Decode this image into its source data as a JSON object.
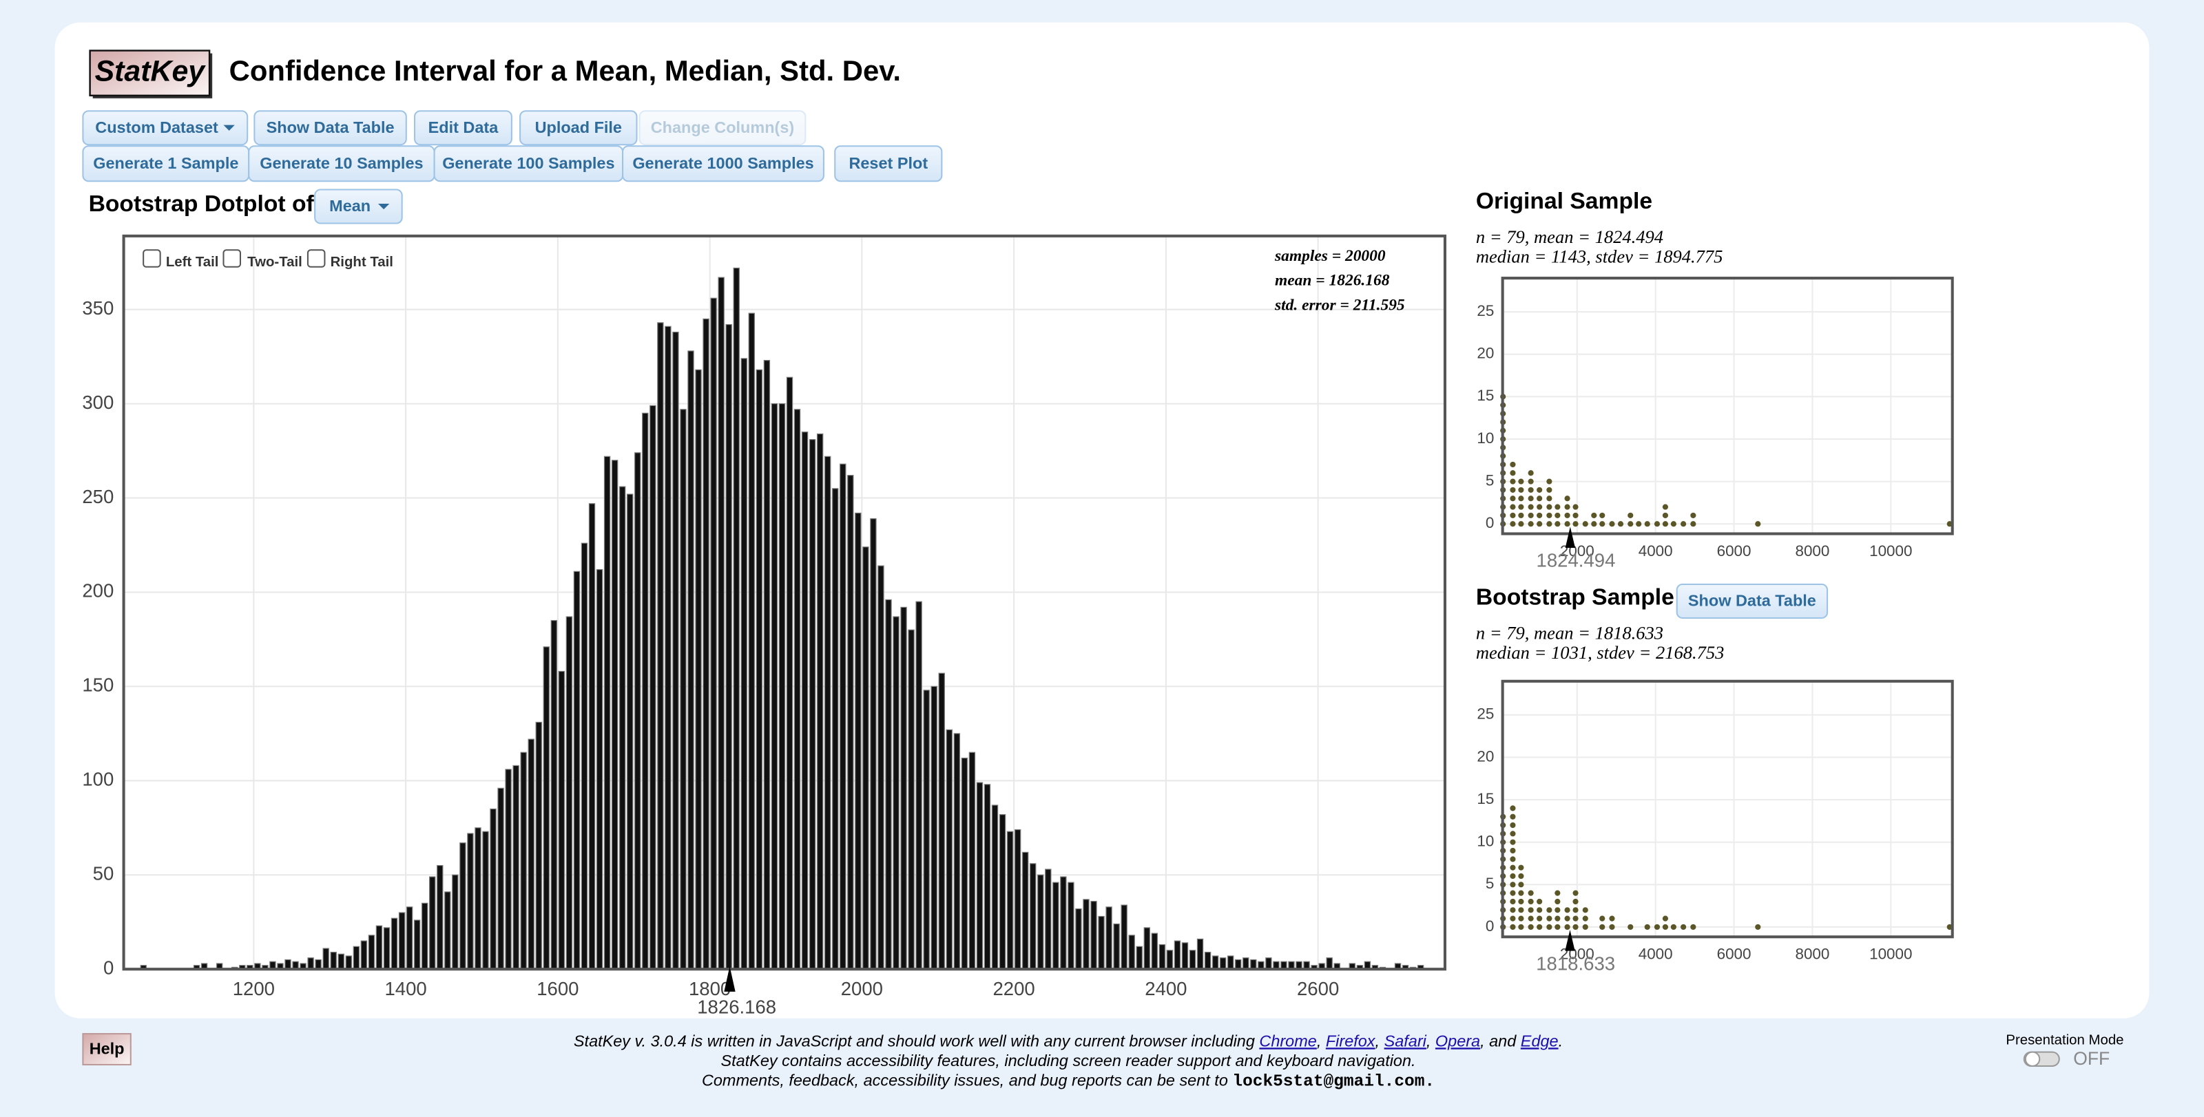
{
  "header": {
    "logo": "StatKey",
    "title": "Confidence Interval for a Mean, Median, Std. Dev."
  },
  "toolbar": {
    "row1": [
      "Custom Dataset",
      "Show Data Table",
      "Edit Data",
      "Upload File",
      "Change Column(s)"
    ],
    "row2": [
      "Generate 1 Sample",
      "Generate 10 Samples",
      "Generate 100 Samples",
      "Generate 1000 Samples",
      "Reset Plot"
    ]
  },
  "chart_data": [
    {
      "type": "histogram",
      "title": "Bootstrap Dotplot of",
      "statistic": "Mean",
      "tails": [
        "Left Tail",
        "Two-Tail",
        "Right Tail"
      ],
      "annotations": [
        "samples = 20000",
        "mean = 1826.168",
        "std. error = 211.595"
      ],
      "bins": [
        1050,
        1060,
        1070,
        1080,
        1090,
        1100,
        1110,
        1120,
        1130,
        1140,
        1150,
        1160,
        1170,
        1180,
        1190,
        1200,
        1210,
        1220,
        1230,
        1240,
        1250,
        1260,
        1270,
        1280,
        1290,
        1300,
        1310,
        1320,
        1330,
        1340,
        1350,
        1360,
        1370,
        1380,
        1390,
        1400,
        1410,
        1420,
        1430,
        1440,
        1450,
        1460,
        1470,
        1480,
        1490,
        1500,
        1510,
        1520,
        1530,
        1540,
        1550,
        1560,
        1570,
        1580,
        1590,
        1600,
        1610,
        1620,
        1630,
        1640,
        1650,
        1660,
        1670,
        1680,
        1690,
        1700,
        1710,
        1720,
        1730,
        1740,
        1750,
        1760,
        1770,
        1780,
        1790,
        1800,
        1810,
        1820,
        1830,
        1840,
        1850,
        1860,
        1870,
        1880,
        1890,
        1900,
        1910,
        1920,
        1930,
        1940,
        1950,
        1960,
        1970,
        1980,
        1990,
        2000,
        2010,
        2020,
        2030,
        2040,
        2050,
        2060,
        2070,
        2080,
        2090,
        2100,
        2110,
        2120,
        2130,
        2140,
        2150,
        2160,
        2170,
        2180,
        2190,
        2200,
        2210,
        2220,
        2230,
        2240,
        2250,
        2260,
        2270,
        2280,
        2290,
        2300,
        2310,
        2320,
        2330,
        2340,
        2350,
        2360,
        2370,
        2380,
        2390,
        2400,
        2410,
        2420,
        2430,
        2440,
        2450,
        2460,
        2470,
        2480,
        2490,
        2500,
        2510,
        2520,
        2530,
        2540,
        2550,
        2560,
        2570,
        2580,
        2590,
        2600,
        2610,
        2620,
        2630,
        2640,
        2650,
        2660,
        2670,
        2680,
        2690,
        2700,
        2710,
        2720,
        2730,
        2740,
        2750
      ],
      "values": [
        2,
        0,
        0,
        0,
        0,
        0,
        0,
        2,
        3,
        0,
        3,
        0,
        1,
        2,
        2,
        3,
        2,
        4,
        3,
        5,
        4,
        3,
        6,
        5,
        11,
        9,
        8,
        7,
        12,
        15,
        18,
        23,
        22,
        27,
        30,
        33,
        26,
        35,
        49,
        55,
        41,
        50,
        67,
        72,
        75,
        73,
        85,
        96,
        106,
        108,
        115,
        122,
        131,
        171,
        185,
        158,
        187,
        211,
        226,
        247,
        212,
        272,
        270,
        256,
        252,
        274,
        295,
        299,
        343,
        341,
        338,
        297,
        328,
        318,
        345,
        356,
        367,
        342,
        372,
        324,
        348,
        318,
        323,
        300,
        300,
        314,
        297,
        285,
        281,
        284,
        272,
        255,
        268,
        262,
        242,
        224,
        239,
        214,
        196,
        187,
        192,
        180,
        195,
        148,
        150,
        157,
        127,
        125,
        112,
        115,
        99,
        98,
        87,
        82,
        73,
        74,
        62,
        56,
        50,
        53,
        46,
        49,
        46,
        32,
        37,
        36,
        28,
        33,
        24,
        34,
        18,
        12,
        22,
        19,
        13,
        10,
        15,
        14,
        10,
        16,
        9,
        7,
        6,
        7,
        5,
        6,
        5,
        4,
        6,
        4,
        4,
        4,
        4,
        4,
        2,
        3,
        6,
        3,
        0,
        3,
        2,
        4,
        2,
        1,
        0,
        3,
        2,
        1,
        2,
        0
      ],
      "color": "#111111",
      "xlim": [
        1029,
        2767
      ],
      "xticks": [
        1200,
        1400,
        1600,
        1800,
        2000,
        2200,
        2400,
        2600
      ],
      "ylim": [
        0,
        389
      ],
      "yticks": [
        0,
        50,
        100,
        150,
        200,
        250,
        300,
        350
      ],
      "grid": true,
      "marker": 1826.168
    },
    {
      "type": "dotplot",
      "title": "Original Sample",
      "annotations": [
        "n = 79, mean = 1824.494",
        "median = 1143, stdev = 1894.775"
      ],
      "x": [
        110,
        360,
        570,
        820,
        1040,
        1290,
        1500,
        1750,
        1960,
        2210,
        2430,
        2640,
        2890,
        3110,
        3360,
        3570,
        3790,
        4040,
        4250,
        4460,
        4710,
        4960,
        6610,
        11500
      ],
      "values": [
        16,
        8,
        6,
        7,
        5,
        6,
        3,
        4,
        3,
        1,
        2,
        2,
        1,
        1,
        2,
        1,
        1,
        1,
        3,
        1,
        1,
        2,
        1,
        1
      ],
      "color": "#5b5627",
      "xlim": [
        100,
        11570
      ],
      "xticks": [
        2000,
        4000,
        6000,
        8000,
        10000
      ],
      "ylim": [
        -1.16,
        28.97
      ],
      "yticks": [
        0,
        5,
        10,
        15,
        20,
        25
      ],
      "grid": true,
      "marker": 1824.494
    },
    {
      "type": "dotplot",
      "title": "Bootstrap Sample",
      "button": "Show Data Table",
      "annotations": [
        "n = 79, mean = 1818.633",
        "median = 1031, stdev = 2168.753"
      ],
      "x": [
        110,
        360,
        570,
        820,
        1040,
        1290,
        1500,
        1750,
        1960,
        2210,
        2640,
        2890,
        3360,
        3790,
        4040,
        4250,
        4460,
        4710,
        4960,
        6610,
        11500
      ],
      "values": [
        14,
        15,
        8,
        5,
        4,
        3,
        5,
        3,
        5,
        3,
        2,
        2,
        1,
        1,
        1,
        2,
        1,
        1,
        1,
        1,
        1
      ],
      "color": "#5b5627",
      "xlim": [
        100,
        11570
      ],
      "xticks": [
        2000,
        4000,
        6000,
        8000,
        10000
      ],
      "ylim": [
        -1.16,
        28.97
      ],
      "yticks": [
        0,
        5,
        10,
        15,
        20,
        25
      ],
      "grid": true,
      "marker": 1818.633
    }
  ],
  "footer": {
    "help": "Help",
    "lines": [
      [
        {
          "text": "StatKey v. 3.0.4 is written in JavaScript and should work well with any current browser including "
        },
        {
          "text": "Chrome",
          "link": true
        },
        {
          "text": ", "
        },
        {
          "text": "Firefox",
          "link": true
        },
        {
          "text": ", "
        },
        {
          "text": "Safari",
          "link": true
        },
        {
          "text": ", "
        },
        {
          "text": "Opera",
          "link": true
        },
        {
          "text": ", and "
        },
        {
          "text": "Edge",
          "link": true
        },
        {
          "text": "."
        }
      ],
      [
        {
          "text": "StatKey contains accessibility features, including screen reader support and keyboard navigation."
        }
      ],
      [
        {
          "text": "Comments, feedback, accessibility issues, and bug reports can be sent to "
        },
        {
          "text": "lock5stat@gmail.com.",
          "code": true
        }
      ]
    ],
    "presentation": "Presentation Mode",
    "toggle": "OFF"
  }
}
